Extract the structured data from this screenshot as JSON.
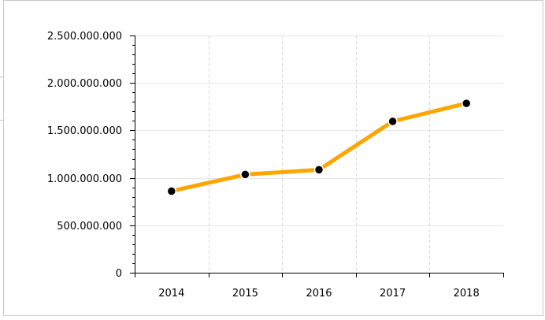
{
  "chart_data": {
    "type": "line",
    "title": "",
    "xlabel": "",
    "ylabel": "",
    "categories": [
      "2014",
      "2015",
      "2016",
      "2017",
      "2018"
    ],
    "series": [
      {
        "values": [
          860000000,
          1035000000,
          1085000000,
          1595000000,
          1785000000
        ],
        "color": "#ffa500",
        "marker_color": "#000000"
      }
    ],
    "ylim": [
      0,
      2500000000
    ],
    "yticks": [
      0,
      500000000,
      1000000000,
      1500000000,
      2000000000,
      2500000000
    ],
    "ytick_labels": [
      "0",
      "500.000.000",
      "1.000.000.000",
      "1.500.000.000",
      "2.000.000.000",
      "2.500.000.000"
    ],
    "grid": true,
    "grid_color": "#e6e6e6",
    "legend": "none"
  }
}
